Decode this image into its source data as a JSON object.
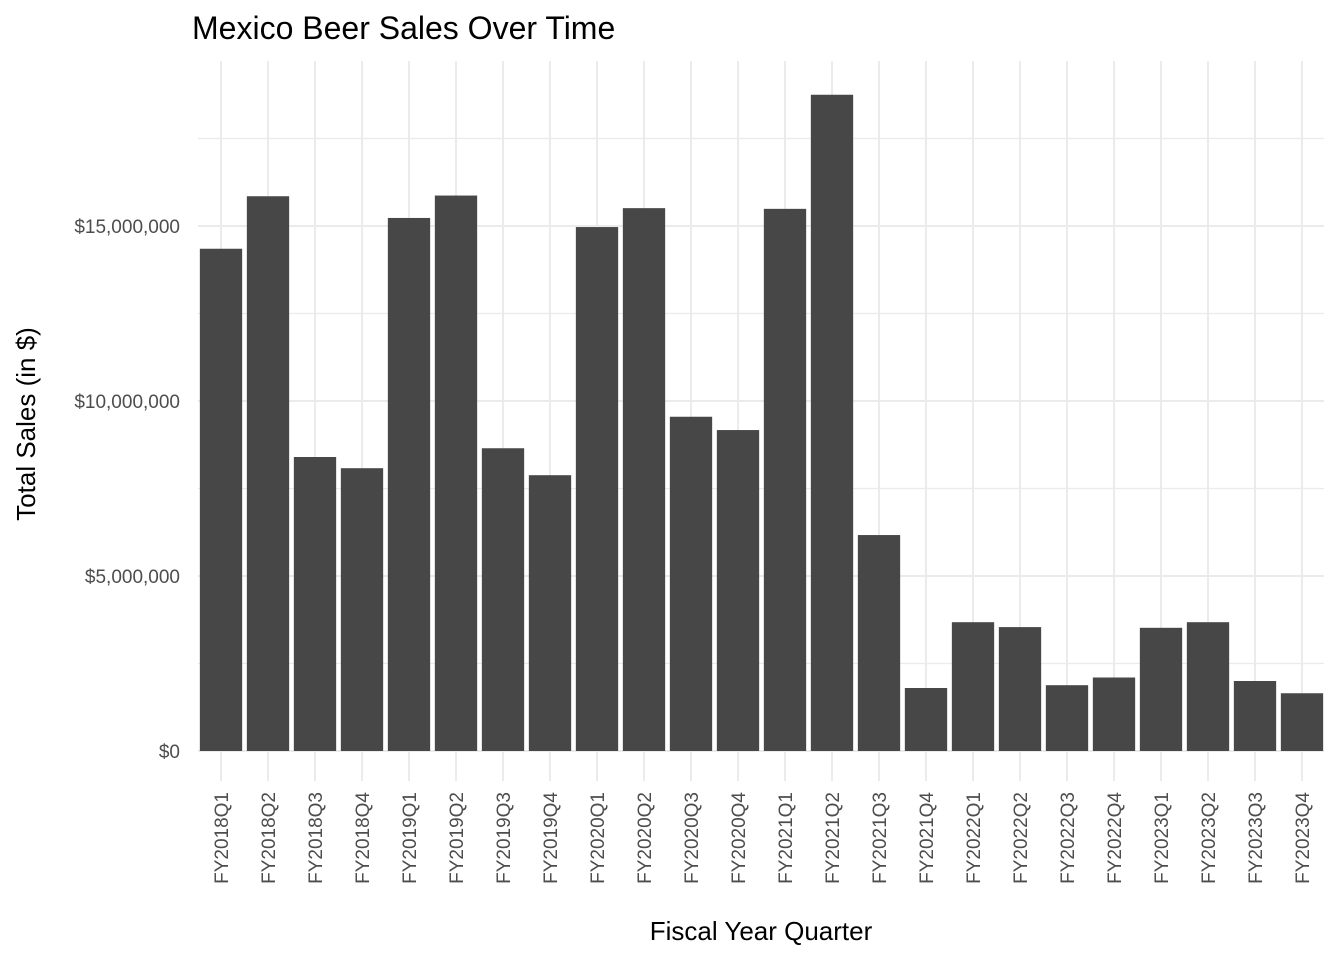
{
  "chart_data": {
    "type": "bar",
    "title": "Mexico Beer Sales Over Time",
    "xlabel": "Fiscal Year Quarter",
    "ylabel": "Total Sales (in $)",
    "categories": [
      "FY2018Q1",
      "FY2018Q2",
      "FY2018Q3",
      "FY2018Q4",
      "FY2019Q1",
      "FY2019Q2",
      "FY2019Q3",
      "FY2019Q4",
      "FY2020Q1",
      "FY2020Q2",
      "FY2020Q3",
      "FY2020Q4",
      "FY2021Q1",
      "FY2021Q2",
      "FY2021Q3",
      "FY2021Q4",
      "FY2022Q1",
      "FY2022Q2",
      "FY2022Q3",
      "FY2022Q4",
      "FY2023Q1",
      "FY2023Q2",
      "FY2023Q3",
      "FY2023Q4"
    ],
    "values": [
      14350000,
      15850000,
      8400000,
      8080000,
      15230000,
      15870000,
      8650000,
      7880000,
      14970000,
      15510000,
      9550000,
      9170000,
      15490000,
      18750000,
      6170000,
      1800000,
      3680000,
      3540000,
      1880000,
      2100000,
      3520000,
      3680000,
      2000000,
      1650000
    ],
    "ylim": [
      0,
      20000000
    ],
    "yticks": [
      0,
      5000000,
      10000000,
      15000000
    ],
    "ytick_labels": [
      "$0",
      "$5,000,000",
      "$10,000,000",
      "$15,000,000"
    ],
    "grid": true,
    "legend": "none",
    "colors": {
      "bar": "#474747",
      "grid": "#ebebeb",
      "tick_text": "#4d4d4d",
      "title_text": "#000000"
    }
  }
}
